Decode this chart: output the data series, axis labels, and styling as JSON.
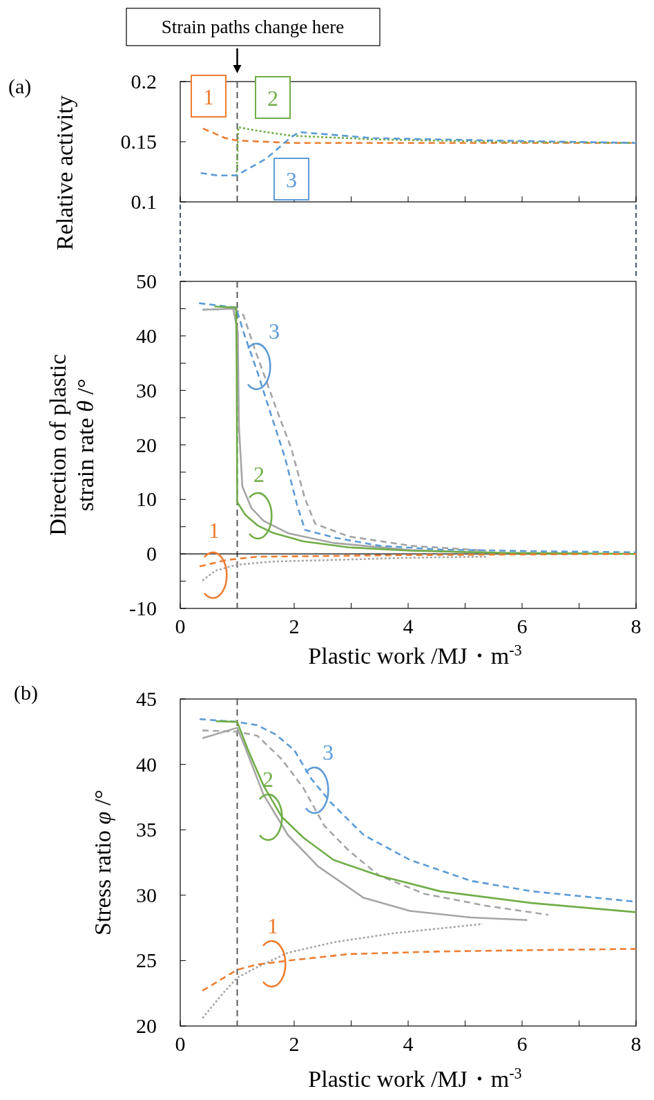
{
  "chart_data": [
    {
      "type": "line",
      "ylabel": "Relative activity",
      "xlim": [
        0,
        8
      ],
      "xticks": [
        0,
        1,
        2,
        3,
        4,
        5,
        6,
        7,
        8
      ],
      "ylim": [
        0.1,
        0.2
      ],
      "yticks": [
        0.1,
        0.15,
        0.2
      ],
      "tick_labels": "y",
      "grid": false,
      "marker": "none",
      "annotations": [
        "(a)",
        "Strain paths change here",
        "1",
        "2",
        "3"
      ],
      "ref_lines": [
        {
          "axis": "x",
          "value": 1,
          "color": "#595959",
          "line_style": "dashed"
        }
      ],
      "series": [
        {
          "color": "#ed7d31",
          "line_style": "dashed",
          "x": [
            0.4,
            0.79,
            1.0,
            1.95,
            3.4,
            8
          ],
          "values": [
            0.161,
            0.153,
            0.151,
            0.149,
            0.149,
            0.149
          ]
        },
        {
          "color": "#70ad47",
          "line_style": "dotted",
          "x": [
            0.9,
            0.99,
            1.02,
            1.37,
            1.95,
            3.39,
            5.55,
            8
          ],
          "values": [
            0.122,
            0.122,
            0.162,
            0.159,
            0.155,
            0.152,
            0.15,
            0.149
          ]
        },
        {
          "color": "#5b9bd5",
          "line_style": "dashed",
          "x": [
            0.36,
            0.65,
            0.99,
            1.51,
            1.95,
            2.09,
            3.39,
            5.55,
            8
          ],
          "values": [
            0.124,
            0.122,
            0.122,
            0.136,
            0.154,
            0.158,
            0.153,
            0.151,
            0.149
          ]
        }
      ]
    },
    {
      "type": "line",
      "ylabel": "Direction of plastic strain rate θ /°",
      "xlabel": "Plastic work /MJ・m$^{-3}$",
      "xlim": [
        0,
        8
      ],
      "xticks": [
        0,
        {
          "value": 1,
          "label": null
        },
        2,
        {
          "value": 3,
          "label": null
        },
        4,
        {
          "value": 5,
          "label": null
        },
        6,
        {
          "value": 7,
          "label": null
        },
        8
      ],
      "ylim": [
        -10,
        50
      ],
      "yticks": [
        -10,
        {
          "value": -5,
          "label": null
        },
        0,
        {
          "value": 5,
          "label": null
        },
        10,
        {
          "value": 15,
          "label": null
        },
        20,
        {
          "value": 25,
          "label": null
        },
        30,
        {
          "value": 35,
          "label": null
        },
        40,
        {
          "value": 45,
          "label": null
        },
        50
      ],
      "grid": false,
      "marker": "none",
      "annotations": [
        "3",
        "2",
        "1"
      ],
      "ref_lines": [
        {
          "axis": "x",
          "value": 1,
          "color": "#595959",
          "line_style": "dashed"
        },
        {
          "axis": "y",
          "value": 0,
          "color": "#000000",
          "line_style": "solid"
        }
      ],
      "series": [
        {
          "color": "#a5a5a5",
          "line_style": "solid",
          "x": [
            0.39,
            0.93,
            1.01,
            1.03,
            1.09,
            1.25,
            1.46,
            1.89,
            2.7,
            4.04,
            5.1,
            5.3
          ],
          "values": [
            44.8,
            45.0,
            40.7,
            23.4,
            12.4,
            8.4,
            6.1,
            3.8,
            2.0,
            0.7,
            0.3,
            0.3
          ]
        },
        {
          "color": "#a5a5a5",
          "line_style": "dashed",
          "x": [
            0.39,
            0.95,
            1.11,
            1.3,
            1.46,
            1.68,
            1.95,
            2.19,
            2.37,
            2.96,
            4.04,
            5.37
          ],
          "values": [
            44.8,
            45.0,
            43.8,
            37.8,
            33.2,
            26.8,
            19.3,
            10.1,
            5.5,
            3.2,
            1.5,
            0.6
          ]
        },
        {
          "color": "#a5a5a5",
          "line_style": "dotted",
          "x": [
            0.39,
            0.61,
            0.98,
            1.62,
            2.7,
            4.04,
            5.37
          ],
          "values": [
            -4.9,
            -3.1,
            -2.0,
            -1.4,
            -1.1,
            -0.7,
            -0.5
          ]
        },
        {
          "color": "#5b9bd5",
          "line_style": "dashed",
          "x": [
            0.33,
            0.98,
            1.11,
            1.36,
            1.57,
            1.84,
            2.05,
            2.19,
            2.75,
            3.5,
            4.57,
            6.18,
            8
          ],
          "values": [
            46.0,
            45.2,
            40.7,
            33.2,
            26.3,
            17.6,
            9.0,
            4.4,
            2.9,
            1.5,
            0.8,
            0.5,
            0.3
          ]
        },
        {
          "color": "#70ad47",
          "line_style": "solid",
          "x": [
            0.6,
            0.98,
            0.99,
            1.0,
            1.14,
            1.36,
            1.62,
            2.16,
            2.96,
            4.04,
            5.64,
            8
          ],
          "values": [
            45.4,
            45.2,
            34.9,
            9.5,
            7.2,
            5.2,
            3.9,
            2.3,
            1.2,
            0.6,
            0.2,
            0.0
          ]
        },
        {
          "color": "#ed7d31",
          "line_style": "dashed",
          "x": [
            0.34,
            0.82,
            1.36,
            2.43,
            4.04,
            8
          ],
          "values": [
            -2.3,
            -1.1,
            -0.5,
            -0.4,
            -0.2,
            0.0
          ]
        }
      ]
    },
    {
      "type": "line",
      "ylabel": "Stress ratio φ /°",
      "xlabel": "Plastic work /MJ・m$^{-3}$",
      "xlim": [
        0,
        8
      ],
      "xticks": [
        0,
        {
          "value": 1,
          "label": null
        },
        2,
        {
          "value": 3,
          "label": null
        },
        4,
        {
          "value": 5,
          "label": null
        },
        6,
        {
          "value": 7,
          "label": null
        },
        8
      ],
      "ylim": [
        20,
        45
      ],
      "yticks": [
        20,
        25,
        30,
        35,
        40,
        45
      ],
      "grid": false,
      "marker": "none",
      "annotations": [
        "(b)",
        "3",
        "2",
        "1"
      ],
      "ref_lines": [
        {
          "axis": "x",
          "value": 1,
          "color": "#595959",
          "line_style": "dashed"
        }
      ],
      "series": [
        {
          "color": "#a5a5a5",
          "line_style": "solid",
          "x": [
            0.39,
            1.0,
            1.14,
            1.46,
            1.89,
            2.42,
            3.22,
            4.03,
            5.1,
            6.09
          ],
          "values": [
            42.0,
            42.8,
            41.3,
            37.7,
            34.6,
            32.2,
            29.8,
            28.8,
            28.3,
            28.1
          ]
        },
        {
          "color": "#a5a5a5",
          "line_style": "dashed",
          "x": [
            0.39,
            1.0,
            1.35,
            1.78,
            2.16,
            2.53,
            2.96,
            3.49,
            4.29,
            5.36,
            6.46
          ],
          "values": [
            42.6,
            42.5,
            42.2,
            40.4,
            38.2,
            35.3,
            33.4,
            31.5,
            30.1,
            29.2,
            28.5
          ]
        },
        {
          "color": "#a5a5a5",
          "line_style": "dotted",
          "x": [
            0.39,
            0.71,
            1.0,
            1.35,
            1.89,
            2.69,
            3.76,
            5.31
          ],
          "values": [
            20.6,
            22.3,
            23.7,
            24.5,
            25.6,
            26.4,
            27.1,
            27.8
          ]
        },
        {
          "color": "#5b9bd5",
          "line_style": "dashed",
          "x": [
            0.34,
            1.0,
            1.35,
            1.67,
            2.0,
            2.3,
            2.64,
            3.22,
            4.03,
            5.1,
            6.17,
            8
          ],
          "values": [
            43.46,
            43.25,
            43.0,
            42.3,
            41.1,
            38.9,
            37.1,
            34.6,
            32.7,
            31.1,
            30.3,
            29.5
          ]
        },
        {
          "color": "#70ad47",
          "line_style": "solid",
          "x": [
            0.63,
            1.0,
            1.19,
            1.46,
            1.78,
            2.16,
            2.69,
            3.49,
            4.56,
            6.17,
            8
          ],
          "values": [
            43.3,
            43.25,
            41.1,
            38.4,
            36.0,
            34.4,
            32.7,
            31.5,
            30.3,
            29.4,
            28.7
          ]
        },
        {
          "color": "#ed7d31",
          "line_style": "dashed",
          "x": [
            0.39,
            1.0,
            1.35,
            1.89,
            2.96,
            4.56,
            6.17,
            8
          ],
          "values": [
            22.7,
            24.3,
            24.7,
            25.0,
            25.5,
            25.7,
            25.8,
            25.9
          ]
        }
      ]
    }
  ]
}
